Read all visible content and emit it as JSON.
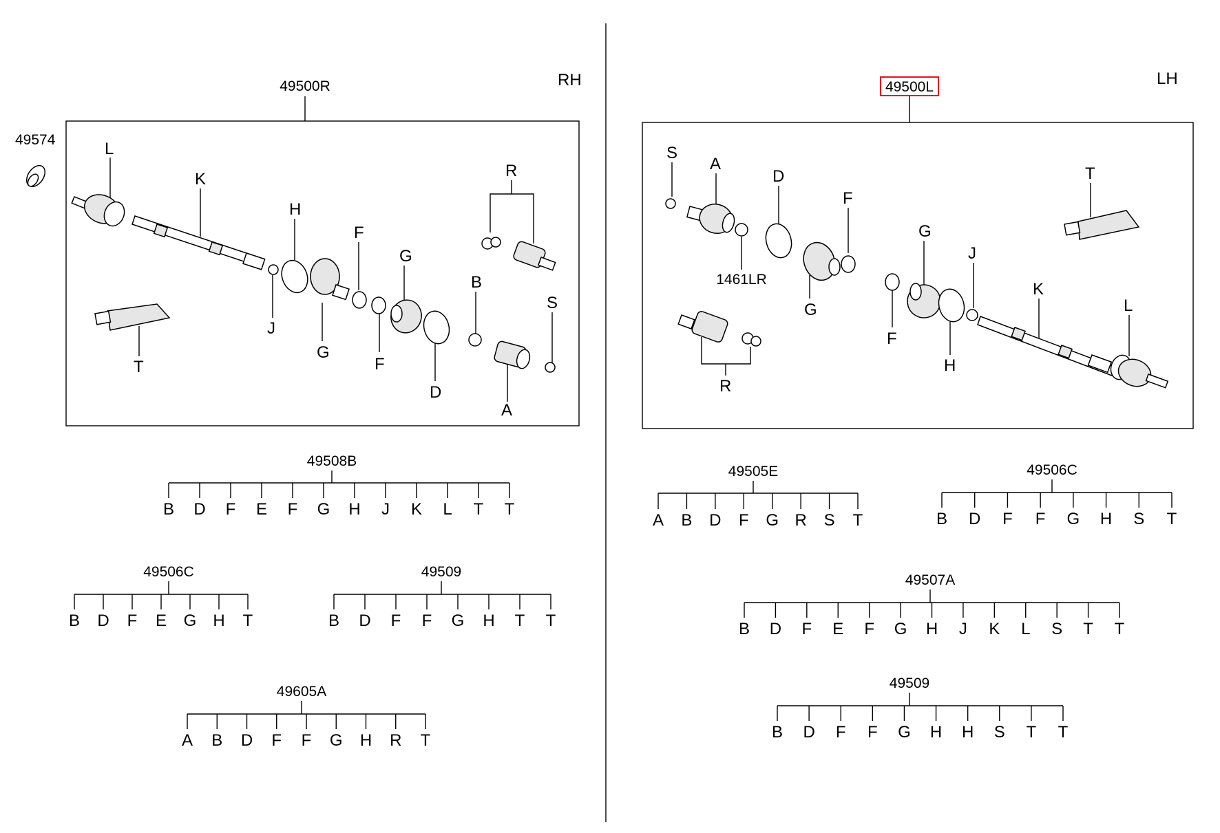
{
  "rh": {
    "side_label": "RH",
    "assembly": "49500R",
    "seal": "49574",
    "callouts": {
      "L": "L",
      "K": "K",
      "H": "H",
      "J": "J",
      "G1": "G",
      "F1": "F",
      "F2": "F",
      "G2": "G",
      "D": "D",
      "B": "B",
      "A": "A",
      "S": "S",
      "R": "R",
      "T": "T"
    },
    "kits": [
      {
        "id": "49508B",
        "items": [
          "B",
          "D",
          "F",
          "E",
          "F",
          "G",
          "H",
          "J",
          "K",
          "L",
          "T",
          "T"
        ]
      },
      {
        "id": "49506C",
        "items": [
          "B",
          "D",
          "F",
          "E",
          "G",
          "H",
          "T"
        ]
      },
      {
        "id": "49509",
        "items": [
          "B",
          "D",
          "F",
          "F",
          "G",
          "H",
          "T",
          "T"
        ]
      },
      {
        "id": "49605A",
        "items": [
          "A",
          "B",
          "D",
          "F",
          "F",
          "G",
          "H",
          "R",
          "T"
        ]
      }
    ]
  },
  "lh": {
    "side_label": "LH",
    "assembly": "49500L",
    "snap_ring": "1461LR",
    "callouts": {
      "S": "S",
      "A": "A",
      "D": "D",
      "F1": "F",
      "G1": "G",
      "T": "T",
      "G2": "G",
      "J": "J",
      "K": "K",
      "L": "L",
      "F2": "F",
      "H": "H",
      "R": "R"
    },
    "kits": [
      {
        "id": "49505E",
        "items": [
          "A",
          "B",
          "D",
          "F",
          "G",
          "R",
          "S",
          "T"
        ]
      },
      {
        "id": "49506C",
        "items": [
          "B",
          "D",
          "F",
          "F",
          "G",
          "H",
          "S",
          "T"
        ]
      },
      {
        "id": "49507A",
        "items": [
          "B",
          "D",
          "F",
          "E",
          "F",
          "G",
          "H",
          "J",
          "K",
          "L",
          "S",
          "T",
          "T"
        ]
      },
      {
        "id": "49509",
        "items": [
          "B",
          "D",
          "F",
          "F",
          "G",
          "H",
          "H",
          "S",
          "T",
          "T"
        ]
      }
    ]
  },
  "colors": {
    "highlight": "#e0141e",
    "line": "#000000"
  }
}
